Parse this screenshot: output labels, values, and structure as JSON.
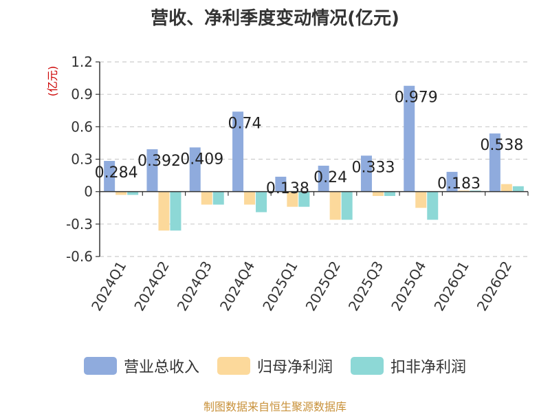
{
  "title": "营收、净利季度变动情况(亿元)",
  "source": "制图数据来自恒生聚源数据库",
  "chart_data": {
    "type": "bar",
    "title": "营收、净利季度变动情况(亿元)",
    "ylabel": "(亿元)",
    "xlabel": "",
    "ylim": [
      -0.6,
      1.2
    ],
    "yticks": [
      1.2,
      0.9,
      0.6,
      0.3,
      0,
      -0.3,
      -0.6
    ],
    "grid": true,
    "legend_position": "bottom",
    "categories": [
      "2024Q1",
      "2024Q2",
      "2024Q3",
      "2024Q4",
      "2025Q1",
      "2025Q2",
      "2025Q3",
      "2025Q4",
      "2026Q1",
      "2026Q2"
    ],
    "series": [
      {
        "name": "营业总收入",
        "color": "#8fabdd",
        "values": [
          0.284,
          0.392,
          0.409,
          0.74,
          0.138,
          0.24,
          0.333,
          0.979,
          0.183,
          0.538
        ],
        "labels": [
          "0.284",
          "0.392",
          "0.409",
          "0.74",
          "0.138",
          "0.24",
          "0.333",
          "0.979",
          "0.183",
          "0.538"
        ]
      },
      {
        "name": "归母净利润",
        "color": "#fcd99b",
        "values": [
          -0.03,
          -0.36,
          -0.12,
          -0.12,
          -0.14,
          -0.26,
          -0.04,
          -0.15,
          0.01,
          0.07
        ]
      },
      {
        "name": "扣非净利润",
        "color": "#8dd8d6",
        "values": [
          -0.03,
          -0.36,
          -0.12,
          -0.19,
          -0.14,
          -0.26,
          -0.04,
          -0.26,
          0.01,
          0.05
        ]
      }
    ]
  }
}
